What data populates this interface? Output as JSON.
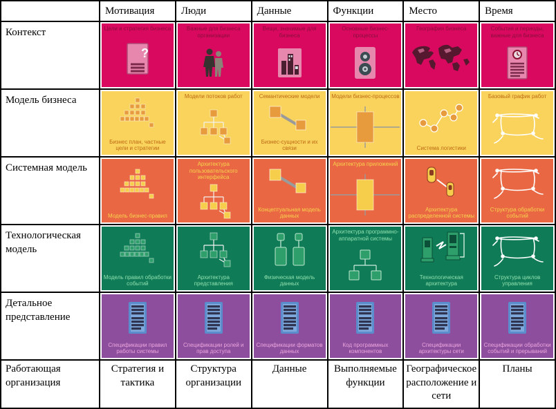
{
  "table": {
    "columns": [
      "Мотивация",
      "Люди",
      "Данные",
      "Функции",
      "Место",
      "Время"
    ],
    "rows": [
      {
        "label": "Контекст",
        "bg": "#D9095F",
        "caption_color": "#8A0F3C",
        "icon_color": "#E887AE",
        "cells": [
          {
            "caption_top": "Цели и стратегия бизнеса",
            "icon": "document-question-icon"
          },
          {
            "caption_top": "Важные для бизнеса организации",
            "icon": "people-icon"
          },
          {
            "caption_top": "Вещи, значимые для бизнеса",
            "icon": "buildings-icon"
          },
          {
            "caption_top": "Основные бизнес-процессы",
            "icon": "gears-icon"
          },
          {
            "caption_top": "География бизнеса",
            "icon": "world-map-icon"
          },
          {
            "caption_top": "События и периоды, важные для бизнеса",
            "icon": "document-clock-icon"
          }
        ]
      },
      {
        "label": "Модель бизнеса",
        "bg": "#F9D35C",
        "caption_color": "#BE6A14",
        "icon_color": "#E89B3C",
        "cells": [
          {
            "caption_bottom": "Бизнес план, частные цели и стратегии",
            "icon": "pyramid-icon"
          },
          {
            "caption_top": "Модели потоков работ",
            "icon": "org-chart-icon"
          },
          {
            "caption_top": "Семантические модели",
            "caption_bottom": "Бизнес-сущности и их связи",
            "icon": "linked-squares-icon"
          },
          {
            "caption_top": "Модели бизнес-процессов",
            "icon": "process-block-icon"
          },
          {
            "caption_bottom": "Система логистики",
            "icon": "logistics-nodes-icon"
          },
          {
            "caption_top": "Базовый график работ",
            "icon": "sketch-icon"
          }
        ]
      },
      {
        "label": "Системная модель",
        "bg": "#E96843",
        "caption_color": "#F8D24E",
        "icon_color": "#F6CE4B",
        "cells": [
          {
            "caption_bottom": "Модель бизнес-правил",
            "icon": "pyramid-icon"
          },
          {
            "caption_top": "Архитектура пользовательского интерфейса",
            "icon": "org-chart-icon"
          },
          {
            "caption_bottom": "Концептуальная модель данных",
            "icon": "linked-squares-icon"
          },
          {
            "caption_top": "Архитектура приложений",
            "icon": "process-block-icon"
          },
          {
            "caption_bottom": "Архитектура распределенной системы",
            "icon": "distributed-nodes-icon"
          },
          {
            "caption_bottom": "Структура обработки событий",
            "icon": "sketch-icon"
          }
        ]
      },
      {
        "label": "Технологическая модель",
        "bg": "#0F7B57",
        "caption_color": "#8FE0AE",
        "icon_color": "#2E9E6B",
        "cells": [
          {
            "caption_bottom": "Модель правил обработки событий",
            "icon": "pyramid-icon"
          },
          {
            "caption_bottom": "Архитектура представления",
            "icon": "org-chart-icon"
          },
          {
            "caption_bottom": "Физическая модель данных",
            "icon": "data-blocks-icon"
          },
          {
            "caption_top": "Архитектура программно-аппаратной системы",
            "icon": "tree-icon"
          },
          {
            "caption_bottom": "Технологическая архитектура",
            "icon": "computers-icon"
          },
          {
            "caption_bottom": "Структура циклов управления",
            "icon": "sketch-icon"
          }
        ]
      },
      {
        "label": "Детальное представление",
        "bg": "#8D4E9E",
        "caption_color": "#ECA6DC",
        "icon_color": "#5B8CCB",
        "cells": [
          {
            "caption_bottom": "Спецификации правил работы системы",
            "icon": "spec-document-icon"
          },
          {
            "caption_bottom": "Спецификации ролей и прав доступа",
            "icon": "spec-document-icon"
          },
          {
            "caption_bottom": "Спецификации форматов данных",
            "icon": "spec-document-icon"
          },
          {
            "caption_bottom": "Код программных компонентов",
            "icon": "spec-document-icon"
          },
          {
            "caption_bottom": "Спецификации архитектуры сети",
            "icon": "spec-document-icon"
          },
          {
            "caption_bottom": "Спецификации обработки событий и прерываний",
            "icon": "spec-document-icon"
          }
        ]
      }
    ],
    "footer": {
      "label": "Работающая организация",
      "cells": [
        "Стратегия и тактика",
        "Структура организации",
        "Данные",
        "Выполняемые функции",
        "Географическое расположение и сети",
        "Планы"
      ]
    }
  }
}
